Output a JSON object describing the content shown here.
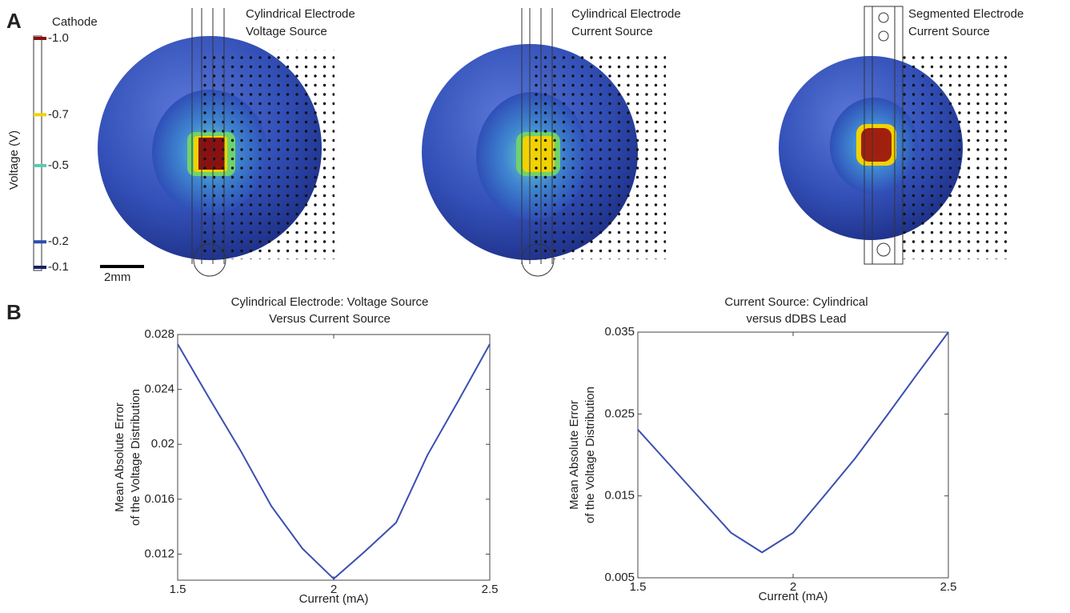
{
  "panel_labels": [
    "A",
    "B"
  ],
  "colorbar": {
    "title": "Cathode",
    "label": "Voltage (V)",
    "lim": [
      -1.0,
      -0.1
    ],
    "ticks": [
      {
        "value": -1.0,
        "label": "-1.0"
      },
      -0.7,
      -0.5,
      -0.2,
      -0.1
    ],
    "tick_colors": [
      "#8b1010",
      "#f2d200",
      "#5cc8b0",
      "#2b4cb0",
      "#1a1f66"
    ]
  },
  "scale_bar": "2mm",
  "images": [
    {
      "title": [
        "Cylindrical Electrode",
        "Voltage Source"
      ]
    },
    {
      "title": [
        "Cylindrical Electrode",
        "Current Source"
      ]
    },
    {
      "title": [
        "Segmented Electrode",
        "Current Source"
      ]
    }
  ],
  "chart_data": [
    {
      "type": "line",
      "title": [
        "Cylindrical Electrode: Voltage Source",
        "Versus Current Source"
      ],
      "xlabel": "Current (mA)",
      "ylabel": [
        "Mean Absolute Error",
        "of the Voltage Distribution"
      ],
      "x": [
        1.5,
        1.6,
        1.7,
        1.8,
        1.9,
        2,
        2.1,
        2.2,
        2.3,
        2.4,
        2.5
      ],
      "series": [
        {
          "color": "#3a4fb0",
          "values": [
            0.0273,
            0.0234,
            0.0196,
            0.0155,
            0.0124,
            0.0102,
            0.0122,
            0.0143,
            0.0192,
            0.0232,
            0.0273
          ]
        }
      ],
      "xlim": [
        1.5,
        2.5
      ],
      "xticks": [
        1.5,
        2,
        2.5
      ],
      "ylim": [
        0.0101,
        0.028
      ],
      "yticks": [
        0.012,
        0.016,
        0.02,
        0.024,
        0.028
      ]
    },
    {
      "type": "line",
      "title": [
        "Current Source: Cylindrical",
        "versus dDBS Lead"
      ],
      "xlabel": "Current (mA)",
      "ylabel": [
        "Mean Absolute Error",
        "of the Voltage Distribution"
      ],
      "x": [
        1.5,
        1.6,
        1.7,
        1.8,
        1.9,
        2,
        2.1,
        2.2,
        2.3,
        2.4,
        2.5
      ],
      "series": [
        {
          "color": "#3a4fb0",
          "values": [
            0.0231,
            0.0189,
            0.0147,
            0.0105,
            0.0081,
            0.0105,
            0.015,
            0.0196,
            0.0247,
            0.0299,
            0.035
          ]
        }
      ],
      "xlim": [
        1.5,
        2.5
      ],
      "xticks": [
        1.5,
        2,
        2.5
      ],
      "ylim": [
        0.005,
        0.035
      ],
      "yticks": [
        0.005,
        0.015,
        0.025,
        0.035
      ]
    }
  ]
}
